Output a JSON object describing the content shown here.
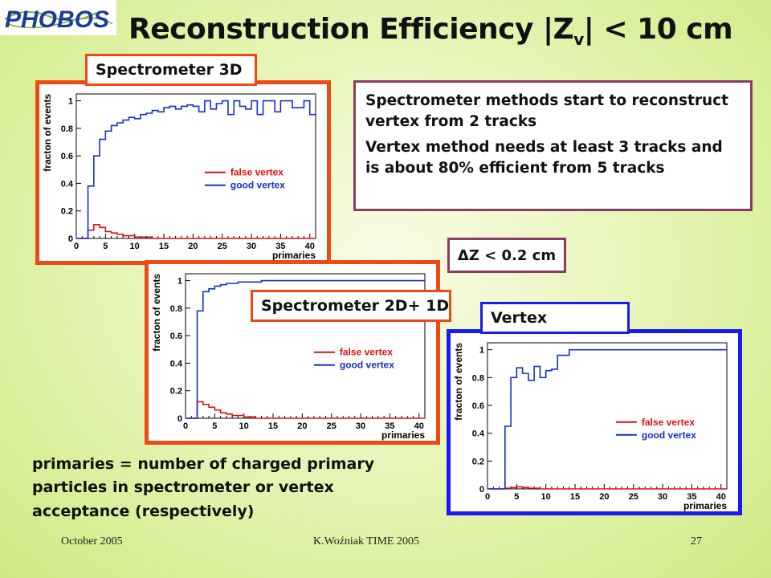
{
  "slide": {
    "logo_text": "PHOBOS",
    "title_main": "Reconstruction Efficiency |Z",
    "title_sub": "v",
    "title_tail": "| < 10 cm",
    "note_lines": [
      "Spectrometer methods start to reconstruct vertex from 2 tracks",
      "Vertex method needs at least 3 tracks and is about 80% efficient from 5 tracks"
    ],
    "dz_label": "ΔZ < 0.2 cm",
    "footnote": "primaries = number of charged primary particles in spectrometer or vertex acceptance (respectively)",
    "footer_left": "October 2005",
    "footer_center": "K.Woźniak TIME 2005",
    "footer_right": "27",
    "colors": {
      "orange_frame": "#f04a14",
      "blue_frame": "#1a1aee",
      "note_border": "#8b3a62",
      "good": "#1530c8",
      "false": "#e01010"
    }
  },
  "chart_data": [
    {
      "type": "line",
      "panel_label": "Spectrometer 3D",
      "xlabel": "primaries",
      "ylabel": "fracton of events",
      "xlim": [
        0,
        41
      ],
      "ylim": [
        0,
        1.05
      ],
      "xticks": [
        0,
        5,
        10,
        15,
        20,
        25,
        30,
        35,
        40
      ],
      "yticks": [
        0,
        0.2,
        0.4,
        0.6,
        0.8,
        1
      ],
      "series": [
        {
          "name": "false vertex",
          "color": "#e01010",
          "x": [
            0,
            1,
            2,
            3,
            4,
            5,
            6,
            7,
            8,
            9,
            10,
            11,
            12,
            13,
            14,
            15,
            16,
            17,
            18,
            19,
            20,
            21,
            22,
            23,
            24,
            25,
            26,
            27,
            28,
            29,
            30,
            31,
            32,
            33,
            34,
            35,
            36,
            37,
            38,
            39,
            40,
            41
          ],
          "y": [
            0,
            0,
            0.06,
            0.1,
            0.08,
            0.05,
            0.04,
            0.03,
            0.02,
            0.02,
            0.01,
            0.01,
            0.01,
            0,
            0,
            0,
            0,
            0,
            0,
            0,
            0,
            0,
            0,
            0,
            0,
            0,
            0,
            0,
            0,
            0,
            0,
            0,
            0,
            0,
            0,
            0,
            0,
            0,
            0,
            0,
            0,
            0
          ]
        },
        {
          "name": "good vertex",
          "color": "#1530c8",
          "x": [
            0,
            1,
            2,
            3,
            4,
            5,
            6,
            7,
            8,
            9,
            10,
            11,
            12,
            13,
            14,
            15,
            16,
            17,
            18,
            19,
            20,
            21,
            22,
            23,
            24,
            25,
            26,
            27,
            28,
            29,
            30,
            31,
            32,
            33,
            34,
            35,
            36,
            37,
            38,
            39,
            40,
            41
          ],
          "y": [
            0,
            0,
            0.38,
            0.6,
            0.72,
            0.78,
            0.82,
            0.84,
            0.86,
            0.88,
            0.87,
            0.9,
            0.91,
            0.93,
            0.92,
            0.95,
            0.96,
            0.94,
            0.96,
            0.97,
            0.96,
            0.92,
            1.0,
            0.94,
            0.98,
            1.0,
            0.9,
            1.0,
            0.96,
            0.94,
            1.0,
            0.9,
            1.0,
            1.0,
            0.92,
            1.0,
            1.0,
            0.95,
            0.95,
            1.0,
            0.9,
            0.95
          ]
        }
      ]
    },
    {
      "type": "line",
      "panel_label": "Spectrometer 2D+ 1D",
      "xlabel": "primaries",
      "ylabel": "fracton of events",
      "xlim": [
        0,
        41
      ],
      "ylim": [
        0,
        1.05
      ],
      "xticks": [
        0,
        5,
        10,
        15,
        20,
        25,
        30,
        35,
        40
      ],
      "yticks": [
        0,
        0.2,
        0.4,
        0.6,
        0.8,
        1
      ],
      "series": [
        {
          "name": "false vertex",
          "color": "#e01010",
          "x": [
            0,
            1,
            2,
            3,
            4,
            5,
            6,
            7,
            8,
            9,
            10,
            11,
            12,
            13,
            14,
            15,
            16,
            17,
            18,
            19,
            20,
            21,
            22,
            23,
            24,
            25,
            26,
            27,
            28,
            29,
            30,
            31,
            32,
            33,
            34,
            35,
            36,
            37,
            38,
            39,
            40,
            41
          ],
          "y": [
            0,
            0,
            0.12,
            0.1,
            0.08,
            0.06,
            0.04,
            0.03,
            0.02,
            0.02,
            0.01,
            0.01,
            0,
            0,
            0,
            0,
            0,
            0,
            0,
            0,
            0,
            0,
            0,
            0,
            0,
            0,
            0,
            0,
            0,
            0,
            0,
            0,
            0,
            0,
            0,
            0,
            0,
            0,
            0,
            0,
            0,
            0
          ]
        },
        {
          "name": "good vertex",
          "color": "#1530c8",
          "x": [
            0,
            1,
            2,
            3,
            4,
            5,
            6,
            7,
            8,
            9,
            10,
            11,
            12,
            13,
            14,
            15,
            16,
            17,
            18,
            19,
            20,
            21,
            22,
            23,
            24,
            25,
            26,
            27,
            28,
            29,
            30,
            31,
            32,
            33,
            34,
            35,
            36,
            37,
            38,
            39,
            40,
            41
          ],
          "y": [
            0,
            0,
            0.78,
            0.92,
            0.94,
            0.96,
            0.97,
            0.98,
            0.98,
            0.99,
            0.99,
            0.99,
            0.99,
            1.0,
            1.0,
            1.0,
            1.0,
            1.0,
            1.0,
            1.0,
            1.0,
            1.0,
            1.0,
            1.0,
            1.0,
            1.0,
            1.0,
            1.0,
            1.0,
            1.0,
            1.0,
            1.0,
            1.0,
            1.0,
            1.0,
            1.0,
            1.0,
            1.0,
            1.0,
            1.0,
            1.0,
            1.0
          ]
        }
      ]
    },
    {
      "type": "line",
      "panel_label": "Vertex",
      "xlabel": "primaries",
      "ylabel": "fracton of events",
      "xlim": [
        0,
        41
      ],
      "ylim": [
        0,
        1.05
      ],
      "xticks": [
        0,
        5,
        10,
        15,
        20,
        25,
        30,
        35,
        40
      ],
      "yticks": [
        0,
        0.2,
        0.4,
        0.6,
        0.8,
        1
      ],
      "series": [
        {
          "name": "false vertex",
          "color": "#e01010",
          "x": [
            0,
            1,
            2,
            3,
            4,
            5,
            6,
            7,
            8,
            9,
            10,
            11,
            12,
            13,
            14,
            15,
            16,
            17,
            18,
            19,
            20,
            21,
            22,
            23,
            24,
            25,
            26,
            27,
            28,
            29,
            30,
            31,
            32,
            33,
            34,
            35,
            36,
            37,
            38,
            39,
            40,
            41
          ],
          "y": [
            0,
            0,
            0,
            0.005,
            0.01,
            0.015,
            0.01,
            0.005,
            0.005,
            0,
            0,
            0,
            0,
            0,
            0,
            0,
            0,
            0,
            0,
            0,
            0,
            0,
            0,
            0,
            0,
            0,
            0,
            0,
            0,
            0,
            0,
            0,
            0,
            0,
            0,
            0,
            0,
            0,
            0,
            0,
            0,
            0
          ]
        },
        {
          "name": "good vertex",
          "color": "#1530c8",
          "x": [
            0,
            1,
            2,
            3,
            4,
            5,
            6,
            7,
            8,
            9,
            10,
            11,
            12,
            13,
            14,
            15,
            16,
            17,
            18,
            19,
            20,
            21,
            22,
            23,
            24,
            25,
            26,
            27,
            28,
            29,
            30,
            31,
            32,
            33,
            34,
            35,
            36,
            37,
            38,
            39,
            40,
            41
          ],
          "y": [
            0,
            0,
            0,
            0.45,
            0.8,
            0.87,
            0.83,
            0.78,
            0.88,
            0.8,
            0.85,
            0.86,
            0.96,
            0.96,
            1.0,
            1.0,
            1.0,
            1.0,
            1.0,
            1.0,
            1.0,
            1.0,
            1.0,
            1.0,
            1.0,
            1.0,
            1.0,
            1.0,
            1.0,
            1.0,
            1.0,
            1.0,
            1.0,
            1.0,
            1.0,
            1.0,
            1.0,
            1.0,
            1.0,
            1.0,
            1.0,
            1.0
          ]
        }
      ]
    }
  ]
}
